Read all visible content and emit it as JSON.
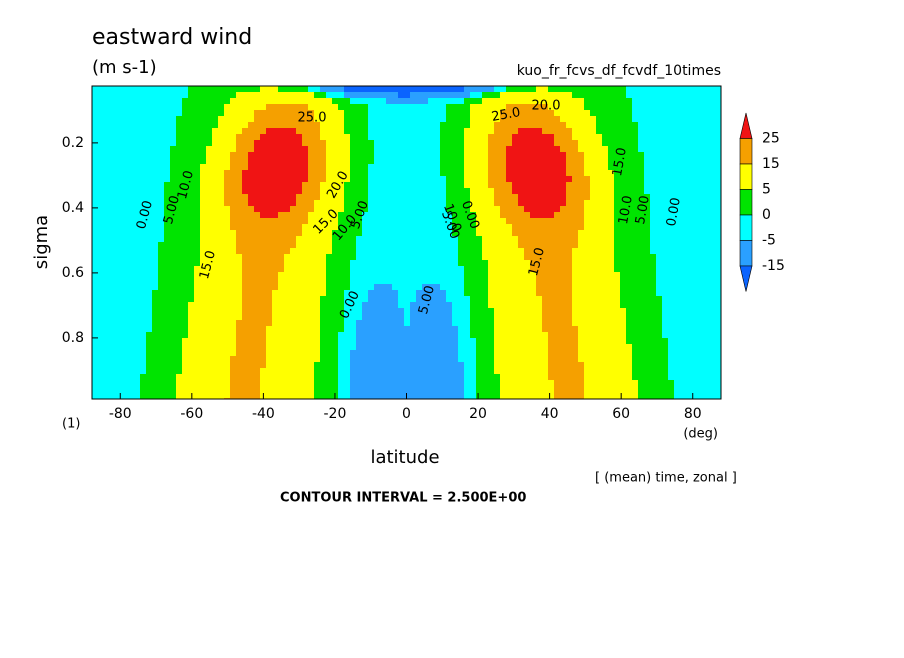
{
  "chart_data": {
    "type": "contour",
    "title": "eastward wind",
    "units": "(m s-1)",
    "subtitle": "kuo_fr_fcvs_df_fcvdf_10times",
    "xlabel": "latitude",
    "xunit": "(deg)",
    "ylabel": "sigma",
    "yunit": "(1)",
    "xlim": [
      -87.9,
      87.9
    ],
    "ylim": [
      0.025,
      0.988
    ],
    "y_reversed": true,
    "xticks": [
      -80,
      -60,
      -40,
      -20,
      0,
      20,
      40,
      60,
      80
    ],
    "yticks": [
      0.2,
      0.4,
      0.6,
      0.8
    ],
    "levels": [
      25,
      15,
      5,
      0,
      -5,
      -15
    ],
    "colors": [
      "#f01414",
      "#f5a000",
      "#ffff00",
      "#00e400",
      "#00ffff",
      "#2aa0ff",
      "#0a64ff"
    ],
    "contour_labels": [
      "0.00",
      "5.00",
      "10.0",
      "15.0",
      "25.0",
      "20.0",
      "15.0",
      "10.0",
      "5.00",
      "0.00",
      "5.00",
      "5.00",
      "0.00",
      "10.0",
      "15.0",
      "25.0",
      "20.0",
      "15.0",
      "10.0",
      "5.00",
      "0.00"
    ],
    "note": "[ (mean) time, zonal ]",
    "footer": "CONTOUR INTERVAL = 2.500E+00"
  }
}
